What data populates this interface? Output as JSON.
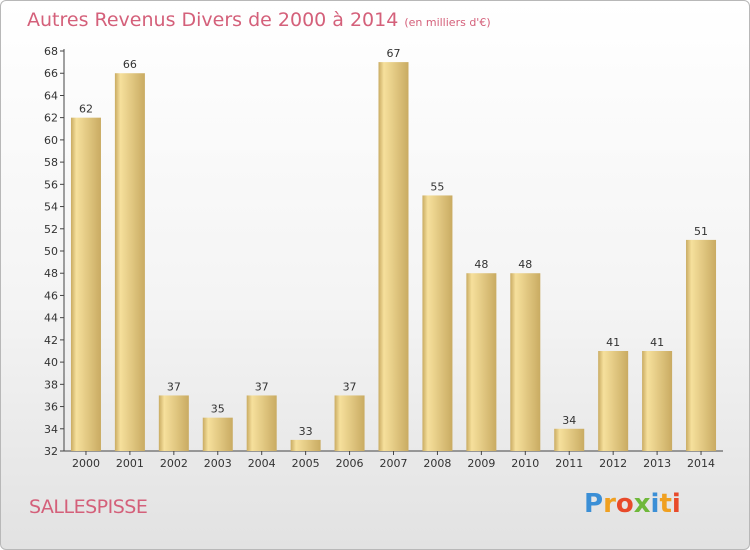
{
  "title": "Autres Revenus Divers de 2000 à 2014",
  "subtitle": "(en milliers d'€)",
  "town": "SALLESPISSE",
  "logo": {
    "p": "P",
    "r": "r",
    "o": "o",
    "x": "x",
    "i1": "i",
    "t": "t",
    "i2": "i"
  },
  "colors": {
    "title": "#d4607a",
    "bar_light": "#f6e09c",
    "bar_dark": "#c9ab62",
    "axis": "#333333"
  },
  "chart_data": {
    "type": "bar",
    "title": "Autres Revenus Divers de 2000 à 2014",
    "subtitle": "(en milliers d'€)",
    "xlabel": "",
    "ylabel": "",
    "ylim": [
      32,
      68
    ],
    "ytick_step": 2,
    "grid": false,
    "categories": [
      "2000",
      "2001",
      "2002",
      "2003",
      "2004",
      "2005",
      "2006",
      "2007",
      "2008",
      "2009",
      "2010",
      "2011",
      "2012",
      "2013",
      "2014"
    ],
    "values": [
      62,
      66,
      37,
      35,
      37,
      33,
      37,
      67,
      55,
      48,
      48,
      34,
      41,
      41,
      51
    ]
  }
}
